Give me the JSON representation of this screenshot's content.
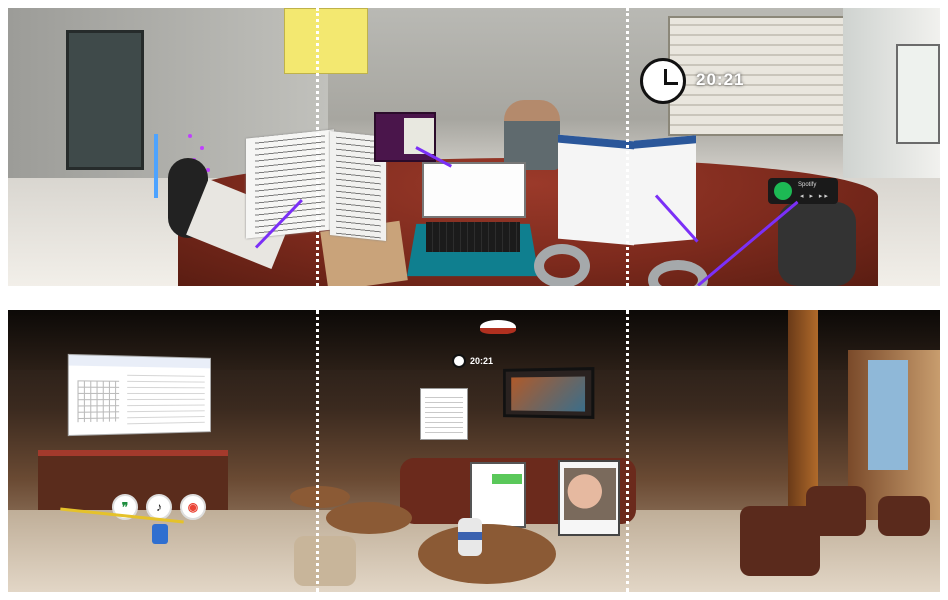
{
  "top_view": {
    "time": "20:21",
    "spotify_title": "Spotify",
    "spotify_controls": "◂ ▸ ▸▸",
    "icons": {
      "clock": "clock-icon",
      "spotify": "spotify-icon"
    }
  },
  "bottom_view": {
    "time": "20:21",
    "apps": [
      {
        "name": "google-chat-icon",
        "glyph": "❞",
        "color": "#1e8e3e"
      },
      {
        "name": "tiktok-icon",
        "glyph": "♪",
        "color": "#111111"
      },
      {
        "name": "google-maps-icon",
        "glyph": "◉",
        "color": "#ea4335"
      }
    ]
  },
  "colors": {
    "ray": "#7b2ff7",
    "divider": "#ffffff",
    "spotify": "#1db954"
  }
}
